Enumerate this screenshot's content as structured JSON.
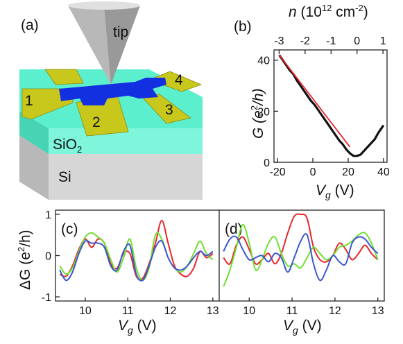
{
  "panel_labels": {
    "a": "(a)",
    "b": "(b)",
    "c": "(c)",
    "d": "(d)"
  },
  "device": {
    "tip_label": "tip",
    "layer_top": "SiO",
    "layer_top_sub": "2",
    "layer_bottom": "Si",
    "contacts": [
      "1",
      "2",
      "3",
      "4"
    ]
  },
  "colors": {
    "oxide": "#4ee8c4",
    "substrate": "#d0d0d0",
    "graphene": "#1330e0",
    "contact": "#c8c81c",
    "series_red": "#e8262a",
    "series_green": "#6fe030",
    "series_blue": "#3b56d0",
    "data_black": "#111111"
  },
  "panel_b": {
    "top_axis_label_n": "n",
    "top_axis_label_rest": " (10",
    "top_axis_exp": "12",
    "top_axis_unit": " cm",
    "top_axis_unit_exp": "-2",
    "top_axis_close": ")",
    "top_ticks": [
      "-3",
      "-2",
      "-1",
      "0",
      "1"
    ],
    "ylabel_G": "G",
    "ylabel_unit": " (e",
    "ylabel_unit_exp": "2",
    "ylabel_unit_h": "/h)",
    "y_ticks": [
      "0",
      "20",
      "40"
    ],
    "x_ticks": [
      "-20",
      "0",
      "20",
      "40"
    ],
    "xlabel_V": "V",
    "xlabel_sub": "g",
    "xlabel_unit": " (V)"
  },
  "panel_cd": {
    "ylabel_delta": "ΔG (e",
    "ylabel_exp": "2",
    "ylabel_h": "/h)",
    "y_ticks": [
      "1",
      "0",
      "-1"
    ],
    "x_ticks": [
      "10",
      "11",
      "12",
      "13"
    ],
    "xlabel_V": "V",
    "xlabel_sub": "g",
    "xlabel_unit": " (V)"
  },
  "chart_data": [
    {
      "type": "line",
      "panel": "b",
      "xlim": [
        -22,
        42
      ],
      "ylim": [
        0,
        44
      ],
      "top_axis": {
        "ticks": [
          -3,
          -2,
          -1,
          0,
          1
        ]
      },
      "grid": false,
      "series": [
        {
          "color": "#111111",
          "x": [
            -19,
            -17,
            -15,
            -13,
            -11,
            -9,
            -7,
            -5,
            -3,
            -1,
            1,
            3,
            5,
            7,
            9,
            11,
            13,
            15,
            17,
            19,
            21,
            23,
            25,
            27,
            29,
            31,
            33,
            35,
            37,
            39,
            40
          ],
          "y": [
            42,
            40,
            38,
            36,
            34.5,
            32,
            30,
            28,
            26,
            24,
            22.5,
            20.5,
            18.5,
            16.5,
            14.5,
            12.5,
            10.5,
            8.5,
            7,
            5,
            3.5,
            2.5,
            2.5,
            3,
            4.5,
            6,
            7.5,
            9,
            11.5,
            13.5,
            14.5
          ]
        },
        {
          "color": "#e8262a",
          "x": [
            -19,
            21
          ],
          "y": [
            42,
            6
          ]
        }
      ]
    },
    {
      "type": "line",
      "panel": "c",
      "xlim": [
        9.3,
        13.15
      ],
      "ylim": [
        -1.1,
        1.1
      ],
      "series": [
        {
          "color": "#e8262a",
          "x": [
            9.4,
            9.55,
            9.7,
            9.85,
            10.0,
            10.15,
            10.3,
            10.45,
            10.6,
            10.75,
            10.9,
            11.05,
            11.2,
            11.35,
            11.5,
            11.65,
            11.8,
            11.95,
            12.1,
            12.25,
            12.4,
            12.55,
            12.7,
            12.85,
            13.0
          ],
          "y": [
            -0.45,
            -0.5,
            -0.25,
            0.15,
            0.4,
            0.2,
            0.4,
            0.3,
            -0.2,
            -0.3,
            0.05,
            0.05,
            -0.5,
            -0.55,
            -0.2,
            0.3,
            0.85,
            0.3,
            -0.25,
            -0.45,
            -0.5,
            -0.3,
            0.1,
            -0.05,
            0.05
          ]
        },
        {
          "color": "#6fe030",
          "x": [
            9.4,
            9.55,
            9.7,
            9.85,
            10.0,
            10.15,
            10.3,
            10.45,
            10.6,
            10.75,
            10.9,
            11.05,
            11.2,
            11.35,
            11.5,
            11.65,
            11.8,
            11.95,
            12.1,
            12.25,
            12.4,
            12.55,
            12.7,
            12.85,
            13.0
          ],
          "y": [
            -0.25,
            -0.45,
            -0.3,
            0.1,
            0.45,
            0.55,
            0.45,
            0.3,
            -0.1,
            -0.4,
            -0.05,
            0.4,
            -0.3,
            -0.6,
            -0.3,
            0.5,
            0.4,
            -0.05,
            -0.3,
            -0.4,
            -0.25,
            0.05,
            0.35,
            0.05,
            -0.1
          ]
        },
        {
          "color": "#3b56d0",
          "x": [
            9.4,
            9.55,
            9.7,
            9.85,
            10.0,
            10.15,
            10.3,
            10.45,
            10.6,
            10.75,
            10.9,
            11.05,
            11.2,
            11.35,
            11.5,
            11.65,
            11.8,
            11.95,
            12.1,
            12.25,
            12.4,
            12.55,
            12.7,
            12.85,
            13.0
          ],
          "y": [
            -0.35,
            -0.6,
            -0.4,
            0.05,
            0.35,
            0.3,
            0.3,
            0.2,
            -0.25,
            -0.35,
            0.1,
            0.25,
            -0.45,
            -0.6,
            -0.25,
            0.2,
            0.35,
            -0.05,
            -0.3,
            -0.35,
            -0.25,
            -0.05,
            0.1,
            0.0,
            0.1
          ]
        }
      ]
    },
    {
      "type": "line",
      "panel": "d",
      "xlim": [
        9.3,
        13.15
      ],
      "ylim": [
        -1.1,
        1.1
      ],
      "series": [
        {
          "color": "#e8262a",
          "x": [
            9.4,
            9.55,
            9.7,
            9.85,
            10.0,
            10.15,
            10.3,
            10.45,
            10.6,
            10.75,
            10.9,
            11.05,
            11.2,
            11.35,
            11.5,
            11.65,
            11.8,
            11.95,
            12.1,
            12.25,
            12.4,
            12.55,
            12.7,
            12.85,
            13.0
          ],
          "y": [
            -0.05,
            -0.2,
            0.25,
            0.45,
            0.15,
            -0.2,
            -0.1,
            0.05,
            -0.2,
            0.05,
            0.55,
            0.95,
            1.0,
            0.9,
            0.2,
            -0.1,
            -0.15,
            0.0,
            0.3,
            0.15,
            -0.1,
            0.05,
            0.25,
            0.05,
            -0.1
          ]
        },
        {
          "color": "#6fe030",
          "x": [
            9.4,
            9.55,
            9.7,
            9.85,
            10.0,
            10.15,
            10.3,
            10.45,
            10.6,
            10.75,
            10.9,
            11.05,
            11.2,
            11.35,
            11.5,
            11.65,
            11.8,
            11.95,
            12.1,
            12.25,
            12.4,
            12.55,
            12.7,
            12.85,
            13.0
          ],
          "y": [
            -0.75,
            -0.35,
            0.2,
            0.75,
            0.3,
            -0.35,
            -0.1,
            0.3,
            0.45,
            0.05,
            -0.25,
            -0.2,
            -0.3,
            -0.05,
            0.2,
            0.05,
            -0.1,
            0.0,
            0.2,
            0.25,
            0.35,
            0.5,
            0.55,
            0.3,
            -0.1
          ]
        },
        {
          "color": "#3b56d0",
          "x": [
            9.4,
            9.55,
            9.7,
            9.85,
            10.0,
            10.15,
            10.3,
            10.45,
            10.6,
            10.75,
            10.9,
            11.05,
            11.2,
            11.35,
            11.5,
            11.65,
            11.8,
            11.95,
            12.1,
            12.25,
            12.4,
            12.55,
            12.7,
            12.85,
            13.0
          ],
          "y": [
            0.1,
            0.4,
            0.45,
            0.15,
            -0.1,
            -0.05,
            0.0,
            -0.15,
            0.05,
            -0.05,
            -0.4,
            -0.05,
            0.35,
            0.5,
            -0.2,
            -0.6,
            -0.35,
            0.0,
            -0.15,
            -0.2,
            0.3,
            0.45,
            0.4,
            0.2,
            0.05
          ]
        }
      ]
    }
  ]
}
